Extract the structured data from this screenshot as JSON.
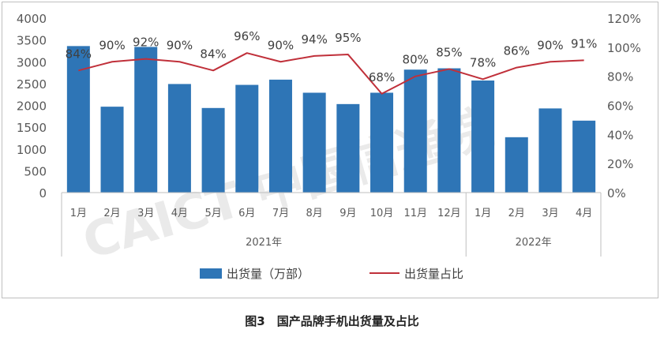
{
  "caption": "图3　国产品牌手机出货量及占比",
  "watermark": "CAICT 中国信通院",
  "colors": {
    "bar": "#2e75b6",
    "line": "#c0303a",
    "axis": "#bfbfbf",
    "text": "#595959"
  },
  "chart_data": {
    "type": "bar+line",
    "categories": [
      "1月",
      "2月",
      "3月",
      "4月",
      "5月",
      "6月",
      "7月",
      "8月",
      "9月",
      "10月",
      "11月",
      "12月",
      "1月",
      "2月",
      "3月",
      "4月"
    ],
    "groups": [
      {
        "label": "2021年",
        "count": 12
      },
      {
        "label": "2022年",
        "count": 4
      }
    ],
    "series": [
      {
        "name": "出货量（万部）",
        "type": "bar",
        "axis": "left",
        "values": [
          3360,
          1970,
          3340,
          2490,
          1940,
          2470,
          2590,
          2290,
          2030,
          2290,
          2820,
          2850,
          2570,
          1270,
          1930,
          1650
        ]
      },
      {
        "name": "出货量占比",
        "type": "line",
        "axis": "right",
        "values": [
          0.84,
          0.9,
          0.92,
          0.9,
          0.84,
          0.96,
          0.9,
          0.94,
          0.95,
          0.68,
          0.8,
          0.85,
          0.78,
          0.86,
          0.9,
          0.91
        ],
        "labels": [
          "84%",
          "90%",
          "92%",
          "90%",
          "84%",
          "96%",
          "90%",
          "94%",
          "95%",
          "68%",
          "80%",
          "85%",
          "78%",
          "86%",
          "90%",
          "91%"
        ]
      }
    ],
    "y_left": {
      "min": 0,
      "max": 4000,
      "ticks": [
        "0",
        "500",
        "1000",
        "1500",
        "2000",
        "2500",
        "3000",
        "3500",
        "4000"
      ]
    },
    "y_right": {
      "min": 0,
      "max": 1.2,
      "ticks": [
        "0%",
        "20%",
        "40%",
        "60%",
        "80%",
        "100%",
        "120%"
      ]
    },
    "legend_position": "bottom",
    "grid": false
  }
}
